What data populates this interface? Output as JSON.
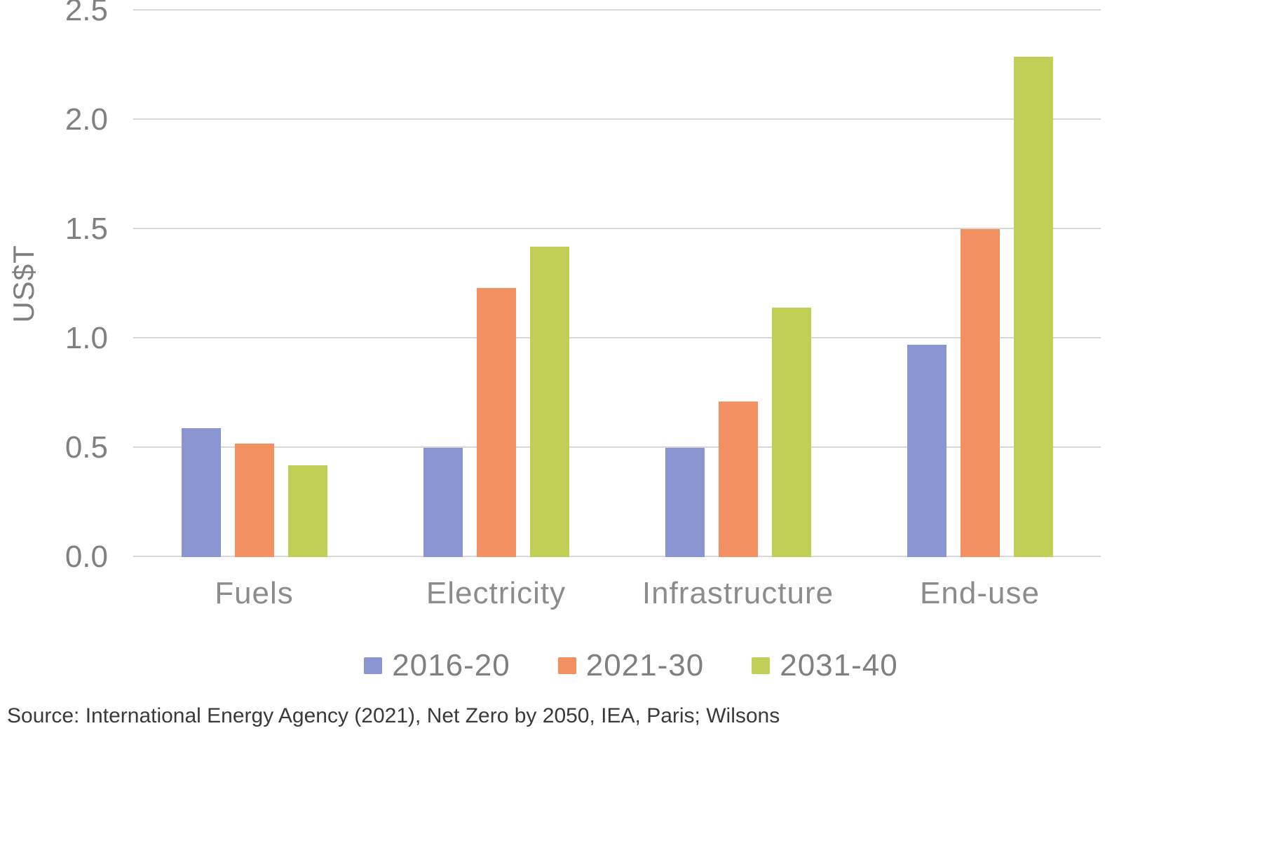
{
  "source": "Source: International Energy Agency (2021), Net Zero by 2050, IEA, Paris; Wilsons",
  "chart_data": {
    "type": "bar",
    "title": "",
    "xlabel": "",
    "ylabel": "US$T",
    "ylim": [
      0,
      2.5
    ],
    "ytick_step": 0.5,
    "grid": true,
    "legend_position": "bottom",
    "gridline_color": "#d9d9d9",
    "axis_text_color": "#808080",
    "categories": [
      "Fuels",
      "Electricity",
      "Infrastructure",
      "End-use"
    ],
    "series": [
      {
        "name": "2016-20",
        "color": "#8b95d2",
        "values": [
          0.59,
          0.5,
          0.5,
          0.97
        ]
      },
      {
        "name": "2021-30",
        "color": "#f29061",
        "values": [
          0.52,
          1.23,
          0.71,
          1.5
        ]
      },
      {
        "name": "2031-40",
        "color": "#c2cf57",
        "values": [
          0.42,
          1.42,
          1.14,
          2.29
        ]
      }
    ]
  }
}
